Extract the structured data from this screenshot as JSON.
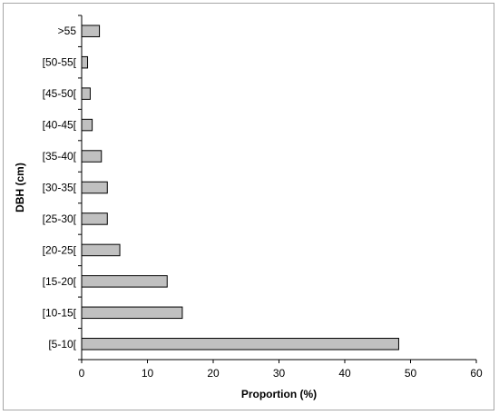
{
  "chart_data": {
    "type": "bar",
    "orientation": "horizontal",
    "title": "",
    "xlabel": "Proportion (%)",
    "ylabel": "DBH (cm)",
    "xlim": [
      0,
      60
    ],
    "xticks": [
      0,
      10,
      20,
      30,
      40,
      50,
      60
    ],
    "categories": [
      "[5-10[",
      "[10-15[",
      "[15-20[",
      "[20-25[",
      "[25-30[",
      "[30-35[",
      "[35-40[",
      "[40-45[",
      "[45-50[",
      "[50-55[",
      ">55"
    ],
    "values": [
      48.2,
      15.3,
      13.0,
      5.8,
      3.9,
      3.9,
      3.0,
      1.6,
      1.3,
      0.9,
      2.7
    ],
    "bar_color": "#c0c0c0",
    "bar_edge_color": "#000000",
    "grid": false,
    "legend": "none"
  }
}
